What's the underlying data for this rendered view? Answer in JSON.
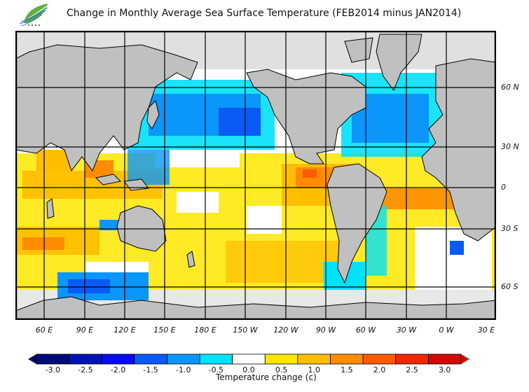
{
  "header": {
    "title": "Change in Monthly Average Sea Surface Temperature (FEB2014 minus JAN2014)",
    "logo_icon": "leaf-logo-icon"
  },
  "map": {
    "lat_labels": [
      "60 N",
      "30 N",
      "0",
      "30 S",
      "60 S"
    ],
    "lon_labels": [
      "60 E",
      "90 E",
      "120 E",
      "150 E",
      "180 E",
      "150 W",
      "120 W",
      "90 W",
      "60 W",
      "30 W",
      "0 W",
      "30 E"
    ],
    "colors": {
      "land": "#c0c0c0",
      "ice": "#e0e0e0",
      "ocean_neutral": "#ffffff",
      "grid": "#000000"
    }
  },
  "colorbar": {
    "ticks": [
      "-3.0",
      "-2.5",
      "-2.0",
      "-1.5",
      "-1.0",
      "-0.5",
      "0.0",
      "0.5",
      "1.0",
      "1.5",
      "2.0",
      "2.5",
      "3.0"
    ],
    "colors": [
      "#000a78",
      "#0014b4",
      "#0a0af0",
      "#0a5af5",
      "#0a96fa",
      "#00e1fa",
      "#ffffff",
      "#ffe600",
      "#ffbe00",
      "#ff8c00",
      "#ff5a00",
      "#f02800",
      "#d20a00"
    ],
    "under_color": "#000a64",
    "over_color": "#d20a00",
    "units_label": "Temperature change  (c)"
  }
}
